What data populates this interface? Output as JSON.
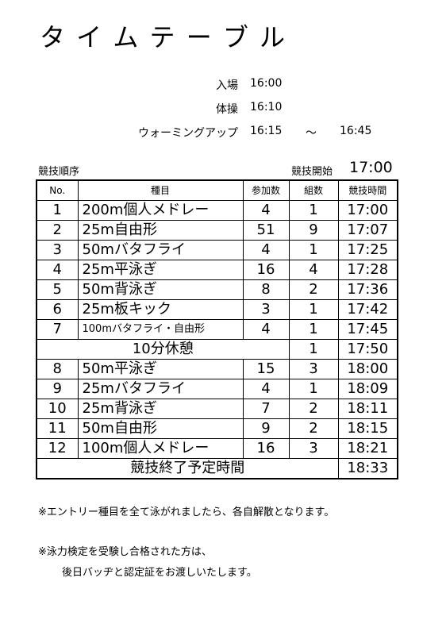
{
  "title": "タ イ ム テ ー ブ ル",
  "schedule": [
    {
      "label": "入場",
      "time": "16:00"
    },
    {
      "label": "体操",
      "time": "16:10"
    },
    {
      "label": "ウォーミングアップ",
      "time": "16:15",
      "separator": "～",
      "end": "16:45"
    }
  ],
  "order_label": "競技順序",
  "start_label": "競技開始",
  "start_time": "17:00",
  "table": {
    "header": [
      "No.",
      "種目",
      "参加数",
      "組数",
      "競技時間"
    ],
    "rows": [
      {
        "no": "1",
        "event": "200m個人メドレー",
        "entries": "4",
        "groups": "1",
        "time": "17:00"
      },
      {
        "no": "2",
        "event": "25m自由形",
        "entries": "51",
        "groups": "9",
        "time": "17:07"
      },
      {
        "no": "3",
        "event": "50mバタフライ",
        "entries": "4",
        "groups": "1",
        "time": "17:25"
      },
      {
        "no": "4",
        "event": "25m平泳ぎ",
        "entries": "16",
        "groups": "4",
        "time": "17:28"
      },
      {
        "no": "5",
        "event": "50m背泳ぎ",
        "entries": "8",
        "groups": "2",
        "time": "17:36"
      },
      {
        "no": "6",
        "event": "25m板キック",
        "entries": "3",
        "groups": "1",
        "time": "17:42"
      },
      {
        "no": "7",
        "event": "100mバタフライ・自由形",
        "entries": "4",
        "groups": "1",
        "time": "17:45"
      },
      {
        "event": "10分休憩",
        "groups": "1",
        "time": "17:50"
      },
      {
        "no": "8",
        "event": "50m平泳ぎ",
        "entries": "15",
        "groups": "3",
        "time": "18:00"
      },
      {
        "no": "9",
        "event": "25mバタフライ",
        "entries": "4",
        "groups": "1",
        "time": "18:09"
      },
      {
        "no": "10",
        "event": "25m背泳ぎ",
        "entries": "7",
        "groups": "2",
        "time": "18:11"
      },
      {
        "no": "11",
        "event": "50m自由形",
        "entries": "9",
        "groups": "2",
        "time": "18:15"
      },
      {
        "no": "12",
        "event": "100m個人メドレー",
        "entries": "16",
        "groups": "3",
        "time": "18:21"
      },
      {
        "event": "競技終了予定時間",
        "time": "18:33"
      }
    ]
  },
  "notes": [
    "※エントリー種目を全て泳がれましたら、各自解散となります。",
    "※泳力検定を受験し合格された方は、",
    "後日バッヂと認定証をお渡しいたします。"
  ]
}
